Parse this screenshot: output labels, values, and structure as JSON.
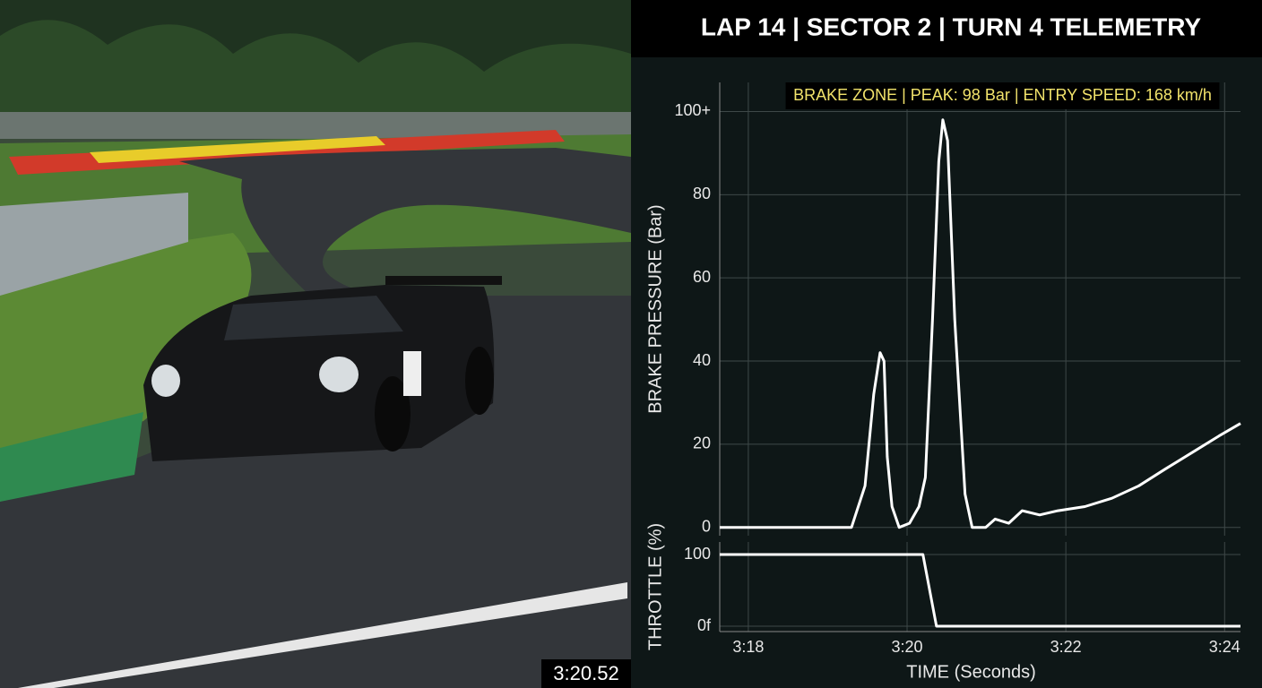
{
  "header": {
    "title": "LAP 14 | SECTOR 2 | TURN 4 TELEMETRY"
  },
  "video": {
    "timestamp": "3:20.52"
  },
  "chart_data": [
    {
      "type": "line",
      "annotation": "BRAKE ZONE | PEAK: 98 Bar | ENTRY SPEED: 168 km/h",
      "ylabel": "BRAKE PRESSURE (Bar)",
      "color": "#ffffff",
      "xlim": [
        197.64,
        204.2
      ],
      "ylim": [
        -2,
        107
      ],
      "yticks": [
        0,
        20,
        40,
        60,
        80,
        {
          "value": 100,
          "label": "100+"
        }
      ],
      "grid": true,
      "x": [
        197.64,
        199.3,
        199.47,
        199.58,
        199.66,
        199.71,
        199.75,
        199.81,
        199.9,
        200.03,
        200.15,
        200.23,
        200.32,
        200.4,
        200.45,
        200.51,
        200.6,
        200.73,
        200.82,
        200.99,
        201.11,
        201.28,
        201.45,
        201.67,
        201.9,
        202.24,
        202.58,
        202.92,
        203.25,
        203.59,
        203.93,
        204.2
      ],
      "values": [
        0,
        0,
        10,
        32,
        42,
        40,
        17,
        5,
        0,
        1,
        5,
        12,
        50,
        88,
        98,
        93,
        50,
        8,
        0,
        0,
        2,
        1,
        4,
        3,
        4,
        5,
        7,
        10,
        14,
        18,
        22,
        25
      ]
    },
    {
      "type": "line",
      "ylabel": "THROTTLE (%)",
      "xlabel": "TIME (Seconds)",
      "color": "#ffffff",
      "xlim": [
        197.64,
        204.2
      ],
      "xticks": [
        {
          "value": 198,
          "label": "3:18"
        },
        {
          "value": 200,
          "label": "3:20"
        },
        {
          "value": 202,
          "label": "3:22"
        },
        {
          "value": 204,
          "label": "3:24"
        }
      ],
      "ylim": [
        -7.5,
        117.5
      ],
      "yticks": [
        {
          "value": 0,
          "label": "0f"
        },
        100
      ],
      "grid": true,
      "x": [
        197.64,
        200.2,
        200.37,
        204.2
      ],
      "values": [
        100,
        100,
        0,
        0
      ]
    }
  ]
}
